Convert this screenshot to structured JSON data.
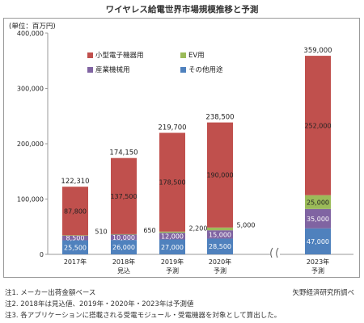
{
  "chart_data": {
    "type": "bar",
    "stacked": true,
    "title": "ワイヤレス給電世界市場規模推移と予測",
    "unit_label": "(単位：百万円)",
    "ylim": [
      0,
      400000
    ],
    "yticks": [
      "0",
      "100,000",
      "200,000",
      "300,000",
      "400,000"
    ],
    "grid": false,
    "legend_position": "top-left",
    "categories": [
      {
        "line1": "2017年",
        "line2": ""
      },
      {
        "line1": "2018年",
        "line2": "見込"
      },
      {
        "line1": "2019年",
        "line2": "予測"
      },
      {
        "line1": "2020年",
        "line2": "予測"
      },
      {
        "line1": "2023年",
        "line2": "予測"
      }
    ],
    "axis_break_between": [
      3,
      4
    ],
    "series": [
      {
        "name": "その他用途",
        "color": "#4f81bd",
        "values": [
          25500,
          26000,
          27000,
          28500,
          47000
        ],
        "labels": [
          "25,500",
          "26,000",
          "27,000",
          "28,500",
          "47,000"
        ],
        "label_color": "#ffffff"
      },
      {
        "name": "産業機械用",
        "color": "#8064a2",
        "values": [
          8500,
          10000,
          12000,
          15000,
          35000
        ],
        "labels": [
          "8,500",
          "10,000",
          "12,000",
          "15,000",
          "35,000"
        ],
        "label_color": "#ffffff"
      },
      {
        "name": "EV用",
        "color": "#9bbb59",
        "values": [
          510,
          650,
          2200,
          5000,
          25000
        ],
        "labels": [
          "510",
          "650",
          "2,200",
          "5,000",
          "25,000"
        ],
        "label_color": "#222222",
        "outside_labels": [
          true,
          true,
          true,
          true,
          false
        ]
      },
      {
        "name": "小型電子機器用",
        "color": "#c0504d",
        "values": [
          87800,
          137500,
          178500,
          190000,
          252000
        ],
        "labels": [
          "87,800",
          "137,500",
          "178,500",
          "190,000",
          "252,000"
        ],
        "label_color": "#222222"
      }
    ],
    "totals": [
      122310,
      174150,
      219700,
      238500,
      359000
    ],
    "total_labels": [
      "122,310",
      "174,150",
      "219,700",
      "238,500",
      "359,000"
    ],
    "legend_order": [
      "小型電子機器用",
      "EV用",
      "産業機械用",
      "その他用途"
    ]
  },
  "notes": [
    "注1. メーカー出荷金額ベース",
    "注2. 2018年は見込値、2019年・2020年・2023年は予測値",
    "注3. 各アプリケーションに搭載される受電モジュール・受電機器を対象として算出した。"
  ],
  "source": "矢野経済研究所調べ"
}
